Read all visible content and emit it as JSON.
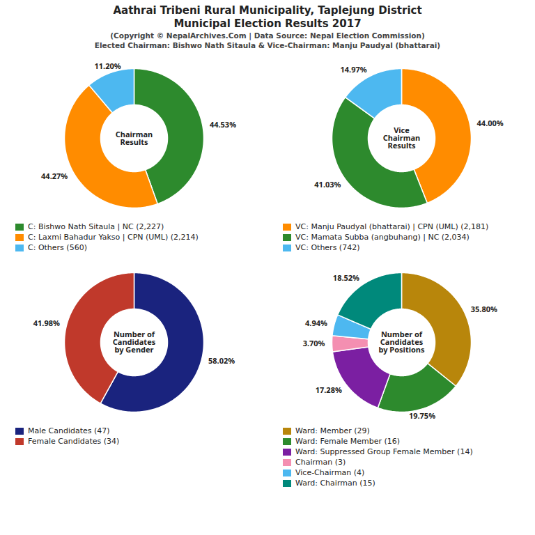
{
  "title": [
    "Aathrai Tribeni Rural Municipality, Taplejung District",
    "Municipal Election Results 2017"
  ],
  "subtitle": [
    "(Copyright © NepalArchives.Com | Data Source: Nepal Election Commission)",
    "Elected Chairman: Bishwo Nath Sitaula & Vice-Chairman: Manju Paudyal (bhattarai)"
  ],
  "chart_data": [
    {
      "type": "pie",
      "title": "Chairman\nResults",
      "categories": [
        "C: Bishwo Nath Sitaula | NC (2,227)",
        "C: Laxmi Bahadur Yakso | CPN (UML) (2,214)",
        "C: Others (560)"
      ],
      "values": [
        44.53,
        44.27,
        11.2
      ],
      "value_labels": [
        "44.53%",
        "44.27%",
        "11.20%"
      ],
      "colors": [
        "#2d8a2d",
        "#ff8c00",
        "#4db8f0"
      ],
      "data_labels": true
    },
    {
      "type": "pie",
      "title": "Vice\nChairman\nResults",
      "categories": [
        "VC: Manju Paudyal (bhattarai) | CPN (UML) (2,181)",
        "VC: Mamata Subba (angbuhang) | NC (2,034)",
        "VC: Others (742)"
      ],
      "values": [
        44.0,
        41.03,
        14.97
      ],
      "value_labels": [
        "44.00%",
        "41.03%",
        "14.97%"
      ],
      "colors": [
        "#ff8c00",
        "#2d8a2d",
        "#4db8f0"
      ],
      "data_labels": true
    },
    {
      "type": "pie",
      "title": "Number of\nCandidates\nby Gender",
      "categories": [
        "Male Candidates (47)",
        "Female Candidates (34)"
      ],
      "values": [
        58.02,
        41.98
      ],
      "value_labels": [
        "58.02%",
        "41.98%"
      ],
      "colors": [
        "#1a237e",
        "#c0392b"
      ],
      "data_labels": true
    },
    {
      "type": "pie",
      "title": "Number of\nCandidates\nby Positions",
      "categories": [
        "Ward: Member (29)",
        "Ward: Female Member (16)",
        "Ward: Suppressed Group Female Member (14)",
        "Chairman (3)",
        "Vice-Chairman (4)",
        "Ward: Chairman (15)"
      ],
      "values": [
        35.8,
        19.75,
        17.28,
        3.7,
        4.94,
        18.52
      ],
      "value_labels": [
        "35.80%",
        "19.75%",
        "17.28%",
        "3.70%",
        "4.94%",
        "18.52%"
      ],
      "colors": [
        "#b8860b",
        "#2d8a2d",
        "#7b1fa2",
        "#f48fb1",
        "#4db8f0",
        "#00897b"
      ],
      "data_labels": true
    }
  ]
}
